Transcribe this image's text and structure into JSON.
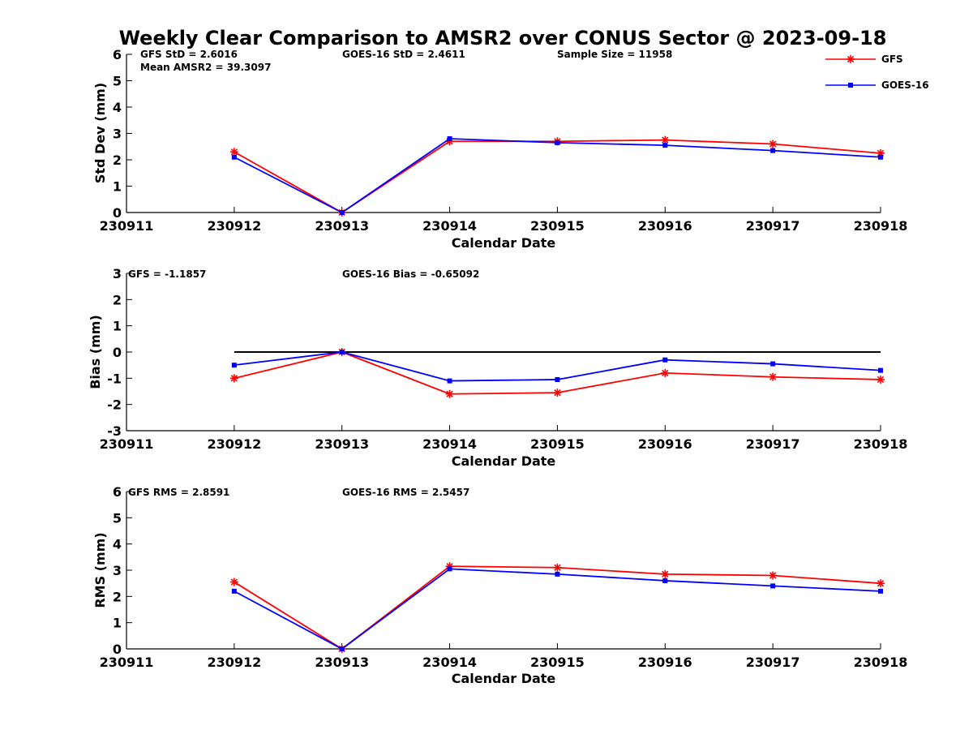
{
  "title": "Weekly Clear Comparison to AMSR2 over CONUS Sector @ 2023-09-18",
  "legend": {
    "position": "top-right",
    "entries": [
      {
        "label": "GFS",
        "color": "#ff0000",
        "marker": "asterisk"
      },
      {
        "label": "GOES-16",
        "color": "#0000ff",
        "marker": "square"
      }
    ]
  },
  "chart_data": [
    {
      "type": "line",
      "xlabel": "Calendar Date",
      "ylabel": "Std Dev (mm)",
      "x_ticks": [
        "230911",
        "230912",
        "230913",
        "230914",
        "230915",
        "230916",
        "230917",
        "230918"
      ],
      "xlim": [
        "230911",
        "230918"
      ],
      "ylim": [
        0,
        6
      ],
      "y_ticks": [
        "0",
        "1",
        "2",
        "3",
        "4",
        "5",
        "6"
      ],
      "zero_line": false,
      "annotations": [
        "GFS StD = 2.6016",
        "Mean AMSR2 = 39.3097",
        "GOES-16 StD = 2.4611",
        "Sample Size = 11958"
      ],
      "series": [
        {
          "name": "GFS",
          "color": "#ff0000",
          "marker": "asterisk",
          "x": [
            "230912",
            "230913",
            "230914",
            "230915",
            "230916",
            "230917",
            "230918"
          ],
          "values": [
            2.3,
            0.0,
            2.7,
            2.7,
            2.75,
            2.6,
            2.25
          ]
        },
        {
          "name": "GOES-16",
          "color": "#0000ff",
          "marker": "square",
          "x": [
            "230912",
            "230913",
            "230914",
            "230915",
            "230916",
            "230917",
            "230918"
          ],
          "values": [
            2.1,
            0.0,
            2.8,
            2.65,
            2.55,
            2.35,
            2.1
          ]
        }
      ]
    },
    {
      "type": "line",
      "xlabel": "Calendar Date",
      "ylabel": "Bias (mm)",
      "x_ticks": [
        "230911",
        "230912",
        "230913",
        "230914",
        "230915",
        "230916",
        "230917",
        "230918"
      ],
      "xlim": [
        "230911",
        "230918"
      ],
      "ylim": [
        -3,
        3
      ],
      "y_ticks": [
        "-3",
        "-2",
        "-1",
        "0",
        "1",
        "2",
        "3"
      ],
      "zero_line": true,
      "annotations": [
        "GFS = -1.1857",
        "GOES-16 Bias  = -0.65092"
      ],
      "series": [
        {
          "name": "GFS",
          "color": "#ff0000",
          "marker": "asterisk",
          "x": [
            "230912",
            "230913",
            "230914",
            "230915",
            "230916",
            "230917",
            "230918"
          ],
          "values": [
            -1.0,
            0.0,
            -1.6,
            -1.55,
            -0.8,
            -0.95,
            -1.05
          ]
        },
        {
          "name": "GOES-16",
          "color": "#0000ff",
          "marker": "square",
          "x": [
            "230912",
            "230913",
            "230914",
            "230915",
            "230916",
            "230917",
            "230918"
          ],
          "values": [
            -0.5,
            0.0,
            -1.1,
            -1.05,
            -0.3,
            -0.45,
            -0.7
          ]
        }
      ]
    },
    {
      "type": "line",
      "xlabel": "Calendar Date",
      "ylabel": "RMS (mm)",
      "x_ticks": [
        "230911",
        "230912",
        "230913",
        "230914",
        "230915",
        "230916",
        "230917",
        "230918"
      ],
      "xlim": [
        "230911",
        "230918"
      ],
      "ylim": [
        0,
        6
      ],
      "y_ticks": [
        "0",
        "1",
        "2",
        "3",
        "4",
        "5",
        "6"
      ],
      "zero_line": false,
      "annotations": [
        "GFS RMS = 2.8591",
        "GOES-16 RMS = 2.5457"
      ],
      "series": [
        {
          "name": "GFS",
          "color": "#ff0000",
          "marker": "asterisk",
          "x": [
            "230912",
            "230913",
            "230914",
            "230915",
            "230916",
            "230917",
            "230918"
          ],
          "values": [
            2.55,
            0.0,
            3.15,
            3.1,
            2.85,
            2.8,
            2.5
          ]
        },
        {
          "name": "GOES-16",
          "color": "#0000ff",
          "marker": "square",
          "x": [
            "230912",
            "230913",
            "230914",
            "230915",
            "230916",
            "230917",
            "230918"
          ],
          "values": [
            2.2,
            0.0,
            3.05,
            2.85,
            2.6,
            2.4,
            2.2
          ]
        }
      ]
    }
  ]
}
